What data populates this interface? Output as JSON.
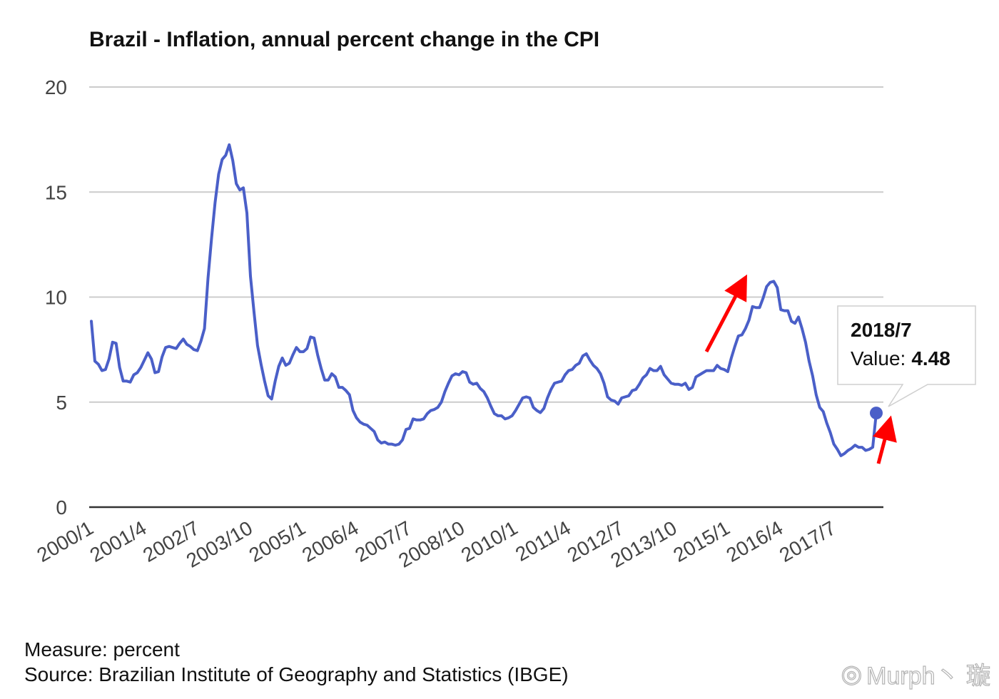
{
  "chart_data": {
    "type": "line",
    "title": "Brazil - Inflation, annual percent change in the CPI",
    "xlabel": "",
    "ylabel": "",
    "ylim": [
      0,
      20
    ],
    "yticks": [
      0,
      5,
      10,
      15,
      20
    ],
    "x_start": "2000/1",
    "x_end": "2018/7",
    "x_tick_labels": [
      "2000/1",
      "2001/4",
      "2002/7",
      "2003/10",
      "2005/1",
      "2006/4",
      "2007/7",
      "2008/10",
      "2010/1",
      "2011/4",
      "2012/7",
      "2013/10",
      "2015/1",
      "2016/4",
      "2017/7"
    ],
    "grid": true,
    "series": [
      {
        "name": "Value",
        "color": "#4a5fc8",
        "values": [
          8.85,
          6.95,
          6.8,
          6.5,
          6.55,
          7.05,
          7.85,
          7.8,
          6.65,
          6.0,
          6.0,
          5.95,
          6.3,
          6.4,
          6.65,
          7.0,
          7.35,
          7.05,
          6.4,
          6.45,
          7.15,
          7.6,
          7.65,
          7.6,
          7.55,
          7.8,
          8.0,
          7.75,
          7.65,
          7.5,
          7.45,
          7.9,
          8.5,
          10.9,
          12.8,
          14.5,
          15.85,
          16.55,
          16.75,
          17.25,
          16.5,
          15.4,
          15.1,
          15.2,
          14.0,
          11.0,
          9.3,
          7.7,
          6.8,
          6.0,
          5.3,
          5.15,
          6.0,
          6.7,
          7.1,
          6.75,
          6.85,
          7.25,
          7.6,
          7.4,
          7.4,
          7.55,
          8.1,
          8.05,
          7.25,
          6.6,
          6.05,
          6.05,
          6.35,
          6.2,
          5.7,
          5.7,
          5.55,
          5.35,
          4.6,
          4.25,
          4.05,
          3.95,
          3.9,
          3.75,
          3.6,
          3.2,
          3.05,
          3.1,
          3.0,
          3.0,
          2.95,
          3.0,
          3.2,
          3.7,
          3.75,
          4.2,
          4.15,
          4.15,
          4.2,
          4.45,
          4.6,
          4.65,
          4.75,
          5.0,
          5.5,
          5.9,
          6.25,
          6.35,
          6.3,
          6.45,
          6.4,
          5.95,
          5.85,
          5.9,
          5.65,
          5.5,
          5.2,
          4.8,
          4.45,
          4.35,
          4.35,
          4.2,
          4.25,
          4.35,
          4.6,
          4.9,
          5.2,
          5.25,
          5.2,
          4.75,
          4.6,
          4.5,
          4.7,
          5.2,
          5.6,
          5.9,
          5.95,
          6.0,
          6.3,
          6.5,
          6.55,
          6.75,
          6.85,
          7.2,
          7.3,
          7.0,
          6.75,
          6.6,
          6.35,
          5.9,
          5.25,
          5.1,
          5.05,
          4.9,
          5.2,
          5.25,
          5.3,
          5.55,
          5.6,
          5.85,
          6.15,
          6.3,
          6.6,
          6.5,
          6.5,
          6.7,
          6.3,
          6.1,
          5.9,
          5.85,
          5.85,
          5.8,
          5.9,
          5.6,
          5.7,
          6.2,
          6.3,
          6.4,
          6.5,
          6.5,
          6.5,
          6.75,
          6.6,
          6.55,
          6.45,
          7.1,
          7.65,
          8.15,
          8.2,
          8.5,
          8.9,
          9.55,
          9.5,
          9.5,
          9.95,
          10.5,
          10.7,
          10.75,
          10.45,
          9.4,
          9.35,
          9.35,
          8.85,
          8.75,
          9.05,
          8.5,
          7.85,
          6.95,
          6.25,
          5.35,
          4.75,
          4.55,
          4.0,
          3.55,
          3.0,
          2.75,
          2.45,
          2.55,
          2.7,
          2.8,
          2.95,
          2.85,
          2.85,
          2.7,
          2.75,
          2.85,
          4.48
        ]
      }
    ],
    "highlight": {
      "label": "2018/7",
      "value_label": "Value:",
      "value": "4.48"
    },
    "annotations": [
      "red-arrow-up",
      "red-arrow-up"
    ]
  },
  "footer": {
    "measure": "Measure: percent",
    "source": "Source: Brazilian Institute of Geography and Statistics (IBGE)"
  },
  "watermark": {
    "text": "Murph丶 璇",
    "icon": "weibo-logo-icon"
  },
  "colors": {
    "series": "#4a5fc8",
    "arrow": "#ff0000",
    "grid": "#cccccc"
  }
}
